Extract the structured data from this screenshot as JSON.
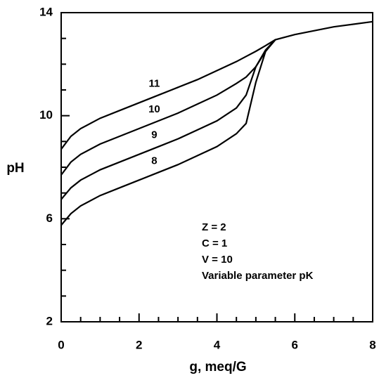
{
  "chart_data": {
    "type": "line",
    "x_label": "g, meq/G",
    "y_label": "pH",
    "x": [
      0,
      0.25,
      0.5,
      1,
      1.5,
      2,
      2.5,
      3,
      3.5,
      4,
      4.5,
      4.75,
      5,
      5.25,
      5.5,
      6,
      7,
      8
    ],
    "series": [
      {
        "name": "11",
        "color": "#000000",
        "values": [
          8.7,
          9.2,
          9.5,
          9.9,
          10.2,
          10.5,
          10.8,
          11.1,
          11.4,
          11.75,
          12.1,
          12.3,
          12.5,
          12.72,
          12.95,
          13.15,
          13.45,
          13.65
        ]
      },
      {
        "name": "10",
        "color": "#000000",
        "values": [
          7.7,
          8.2,
          8.5,
          8.9,
          9.2,
          9.5,
          9.8,
          10.1,
          10.45,
          10.8,
          11.25,
          11.5,
          11.9,
          12.5,
          12.95,
          null,
          null,
          null
        ]
      },
      {
        "name": "9",
        "color": "#000000",
        "values": [
          6.75,
          7.2,
          7.5,
          7.9,
          8.2,
          8.5,
          8.8,
          9.1,
          9.45,
          9.8,
          10.3,
          10.8,
          11.9,
          12.55,
          12.95,
          null,
          null,
          null
        ]
      },
      {
        "name": "8",
        "color": "#000000",
        "values": [
          5.75,
          6.2,
          6.5,
          6.9,
          7.2,
          7.5,
          7.8,
          8.1,
          8.45,
          8.8,
          9.3,
          9.7,
          11.3,
          12.5,
          12.95,
          null,
          null,
          null
        ]
      }
    ],
    "annotations": [
      "Z = 2",
      "C = 1",
      "V = 10",
      "Variable parameter pK"
    ],
    "xlim": [
      0,
      8
    ],
    "ylim": [
      2,
      14
    ],
    "xticks": [
      0,
      2,
      4,
      6,
      8
    ],
    "yticks": [
      2,
      6,
      10,
      14
    ],
    "xminor_ticks": [
      0.5,
      1,
      1.5,
      2.5,
      3,
      3.5,
      4.5,
      5,
      5.5,
      6.5,
      7,
      7.5
    ],
    "yminor_ticks": [
      3,
      4,
      5,
      7,
      8,
      9,
      11,
      12,
      13
    ]
  }
}
